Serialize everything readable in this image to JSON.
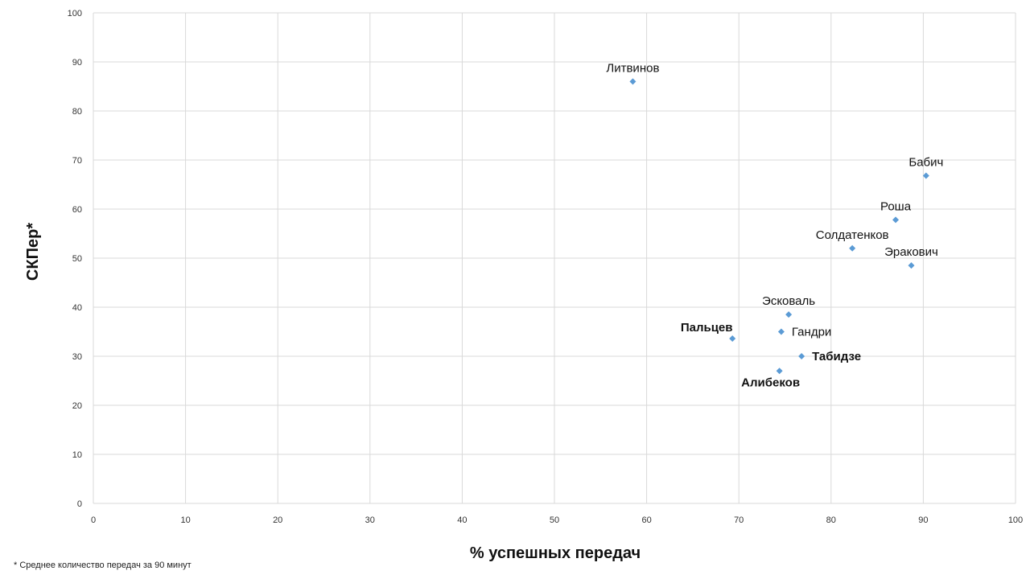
{
  "chart_data": {
    "type": "scatter",
    "xlabel": "% успешных передач",
    "ylabel": "СКПер*",
    "xlim": [
      0,
      100
    ],
    "ylim": [
      0,
      100
    ],
    "xticks": [
      "0",
      "10",
      "20",
      "30",
      "40",
      "50",
      "60",
      "70",
      "80",
      "90",
      "100"
    ],
    "yticks": [
      "0",
      "10",
      "20",
      "30",
      "40",
      "50",
      "60",
      "70",
      "80",
      "90",
      "100"
    ],
    "grid": true,
    "marker_color": "#5B9BD5",
    "highlight_color": "#3F6BB0",
    "points": [
      {
        "label": "Литвинов",
        "x": 58.5,
        "y": 86.0,
        "style": "normal",
        "anchor": "above"
      },
      {
        "label": "Бабич",
        "x": 90.3,
        "y": 66.8,
        "style": "normal",
        "anchor": "above"
      },
      {
        "label": "Роша",
        "x": 87.0,
        "y": 57.8,
        "style": "normal",
        "anchor": "above"
      },
      {
        "label": "Солдатенков",
        "x": 82.3,
        "y": 52.0,
        "style": "normal",
        "anchor": "above"
      },
      {
        "label": "Эракович",
        "x": 88.7,
        "y": 48.5,
        "style": "normal",
        "anchor": "above"
      },
      {
        "label": "Эсковаль",
        "x": 75.4,
        "y": 38.5,
        "style": "normal",
        "anchor": "above"
      },
      {
        "label": "Гандри",
        "x": 74.6,
        "y": 35.0,
        "style": "normal",
        "anchor": "right"
      },
      {
        "label": "Пальцев",
        "x": 69.3,
        "y": 33.6,
        "style": "bold",
        "anchor": "above-left"
      },
      {
        "label": "Табидзе",
        "x": 76.8,
        "y": 30.0,
        "style": "highlight",
        "anchor": "right"
      },
      {
        "label": "Алибеков",
        "x": 74.4,
        "y": 27.0,
        "style": "highlight",
        "anchor": "below"
      }
    ]
  },
  "footnote": "* Среднее количество передач за 90 минут"
}
